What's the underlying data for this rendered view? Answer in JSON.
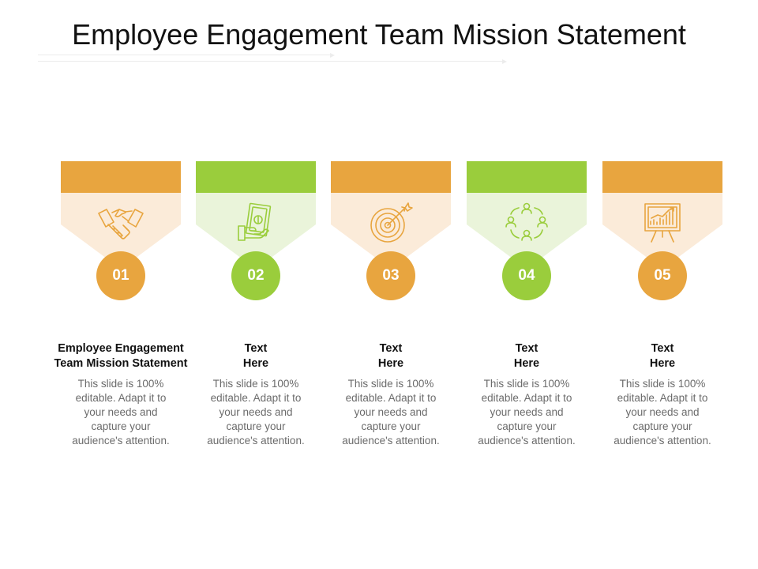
{
  "slide": {
    "title": "Employee Engagement Team Mission Statement"
  },
  "colors": {
    "orange": "#E8A53F",
    "orange_light": "#FBEBD9",
    "green": "#9ACD3C",
    "green_light": "#EAF4DA"
  },
  "steps": [
    {
      "number": "01",
      "heading_line1": "Employee Engagement",
      "heading_line2": "Team Mission Statement",
      "description": "This slide is 100% editable. Adapt it to your needs and capture your audience's attention.",
      "icon": "handshake-icon",
      "accent": "orange"
    },
    {
      "number": "02",
      "heading_line1": "Text",
      "heading_line2": "Here",
      "description": "This slide is 100% editable. Adapt it to your needs and capture your audience's attention.",
      "icon": "money-hand-icon",
      "accent": "green"
    },
    {
      "number": "03",
      "heading_line1": "Text",
      "heading_line2": "Here",
      "description": "This slide is 100% editable. Adapt it to your needs and capture your audience's attention.",
      "icon": "target-arrow-icon",
      "accent": "orange"
    },
    {
      "number": "04",
      "heading_line1": "Text",
      "heading_line2": "Here",
      "description": "This slide is 100% editable. Adapt it to your needs and capture your audience's attention.",
      "icon": "team-network-icon",
      "accent": "green"
    },
    {
      "number": "05",
      "heading_line1": "Text",
      "heading_line2": "Here",
      "description": "This slide is 100% editable. Adapt it to your needs and capture your audience's attention.",
      "icon": "presentation-chart-icon",
      "accent": "orange"
    }
  ]
}
